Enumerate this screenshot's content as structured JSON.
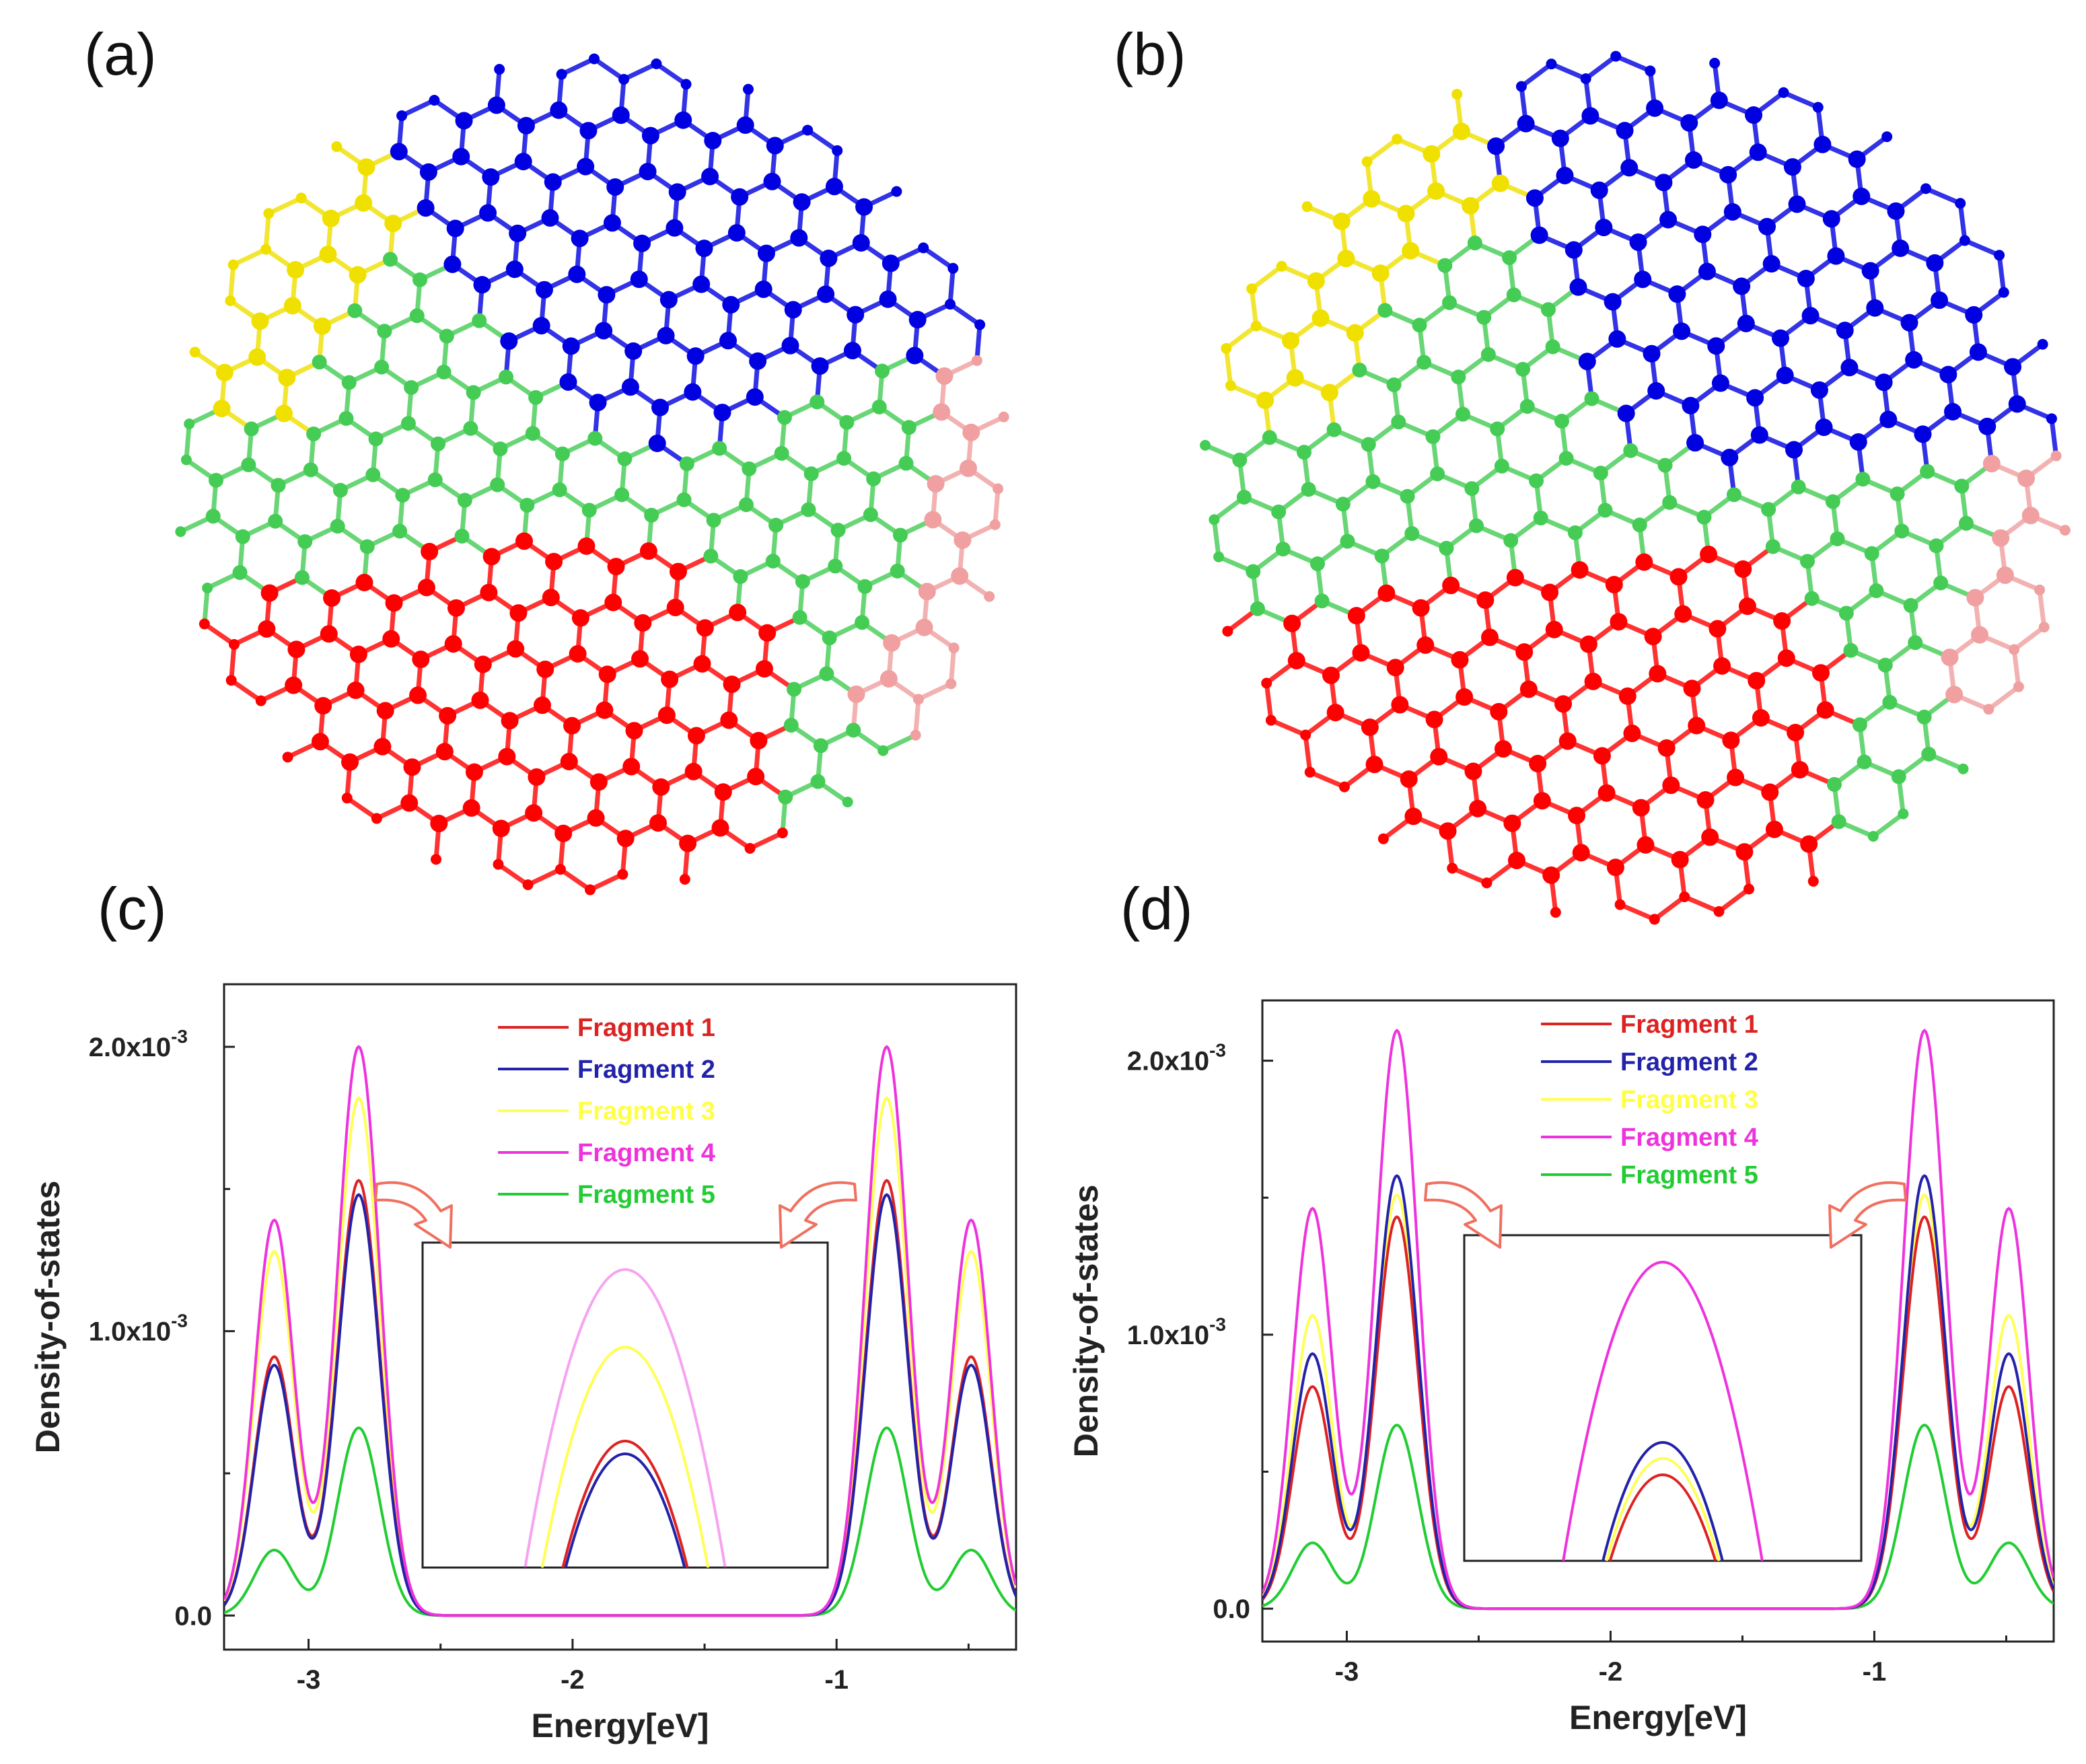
{
  "panels": {
    "a": {
      "label": "(a)"
    },
    "b": {
      "label": "(b)"
    },
    "c": {
      "label": "(c)"
    },
    "d": {
      "label": "(d)"
    }
  },
  "molecule_colors": {
    "fragment_1": "#ff0000",
    "fragment_2": "#0000e0",
    "fragment_3": "#f0e000",
    "fragment_4": "#f0a0a0",
    "fragment_5": "#44cc55"
  },
  "chart_data": [
    {
      "panel": "(c)",
      "type": "line",
      "xlabel": "Energy[eV]",
      "ylabel": "Density-of-states",
      "xlim": [
        -3.32,
        -0.32
      ],
      "ylim": [
        -0.00012,
        0.00222
      ],
      "xticks": [
        -3,
        -2,
        -1
      ],
      "xtick_labels": [
        "-3",
        "-2",
        "-1"
      ],
      "yticks": [
        0.0,
        0.001,
        0.002
      ],
      "ytick_labels": [
        {
          "mantissa": "0.0",
          "exp": ""
        },
        {
          "mantissa": "1.0x10",
          "exp": "-3"
        },
        {
          "mantissa": "2.0x10",
          "exp": "-3"
        }
      ],
      "series": [
        {
          "name": "Fragment 1",
          "color": "#dd2222",
          "peaks": [
            [
              -3.13,
              0.00091
            ],
            [
              -2.81,
              0.00153
            ],
            [
              -0.81,
              0.00153
            ],
            [
              -0.49,
              0.00091
            ]
          ]
        },
        {
          "name": "Fragment 2",
          "color": "#2222aa",
          "peaks": [
            [
              -3.13,
              0.00088
            ],
            [
              -2.81,
              0.00148
            ],
            [
              -0.81,
              0.00148
            ],
            [
              -0.49,
              0.00088
            ]
          ]
        },
        {
          "name": "Fragment 3",
          "color": "#ffff55",
          "peaks": [
            [
              -3.13,
              0.00128
            ],
            [
              -2.81,
              0.00182
            ],
            [
              -0.81,
              0.00182
            ],
            [
              -0.49,
              0.00128
            ]
          ]
        },
        {
          "name": "Fragment 4",
          "color": "#ee33dd",
          "peaks": [
            [
              -3.13,
              0.00139
            ],
            [
              -2.81,
              0.002
            ],
            [
              -0.81,
              0.002
            ],
            [
              -0.49,
              0.00139
            ]
          ]
        },
        {
          "name": "Fragment 5",
          "color": "#22cc33",
          "peaks": [
            [
              -3.13,
              0.00023
            ],
            [
              -2.81,
              0.00066
            ],
            [
              -0.81,
              0.00066
            ],
            [
              -0.49,
              0.00023
            ]
          ]
        }
      ]
    },
    {
      "panel": "(d)",
      "type": "line",
      "xlabel": "Energy[eV]",
      "ylabel": "Density-of-states",
      "xlim": [
        -3.32,
        -0.32
      ],
      "ylim": [
        -0.00012,
        0.00222
      ],
      "xticks": [
        -3,
        -2,
        -1
      ],
      "xtick_labels": [
        "-3",
        "-2",
        "-1"
      ],
      "yticks": [
        0.0,
        0.001,
        0.002
      ],
      "ytick_labels": [
        {
          "mantissa": "0.0",
          "exp": ""
        },
        {
          "mantissa": "1.0x10",
          "exp": "-3"
        },
        {
          "mantissa": "2.0x10",
          "exp": "-3"
        }
      ],
      "series": [
        {
          "name": "Fragment 1",
          "color": "#dd2222",
          "peaks": [
            [
              -3.13,
              0.00081
            ],
            [
              -2.81,
              0.00143
            ],
            [
              -0.81,
              0.00143
            ],
            [
              -0.49,
              0.00081
            ]
          ]
        },
        {
          "name": "Fragment 2",
          "color": "#2222aa",
          "peaks": [
            [
              -3.13,
              0.00093
            ],
            [
              -2.81,
              0.00158
            ],
            [
              -0.81,
              0.00158
            ],
            [
              -0.49,
              0.00093
            ]
          ]
        },
        {
          "name": "Fragment 3",
          "color": "#ffff55",
          "peaks": [
            [
              -3.13,
              0.00107
            ],
            [
              -2.81,
              0.00151
            ],
            [
              -0.81,
              0.00151
            ],
            [
              -0.49,
              0.00107
            ]
          ]
        },
        {
          "name": "Fragment 4",
          "color": "#ee33dd",
          "peaks": [
            [
              -3.13,
              0.00146
            ],
            [
              -2.81,
              0.00211
            ],
            [
              -0.81,
              0.00211
            ],
            [
              -0.49,
              0.00146
            ]
          ]
        },
        {
          "name": "Fragment 5",
          "color": "#22cc33",
          "peaks": [
            [
              -3.13,
              0.00024
            ],
            [
              -2.81,
              0.00067
            ],
            [
              -0.81,
              0.00067
            ],
            [
              -0.49,
              0.00024
            ]
          ]
        }
      ]
    }
  ]
}
